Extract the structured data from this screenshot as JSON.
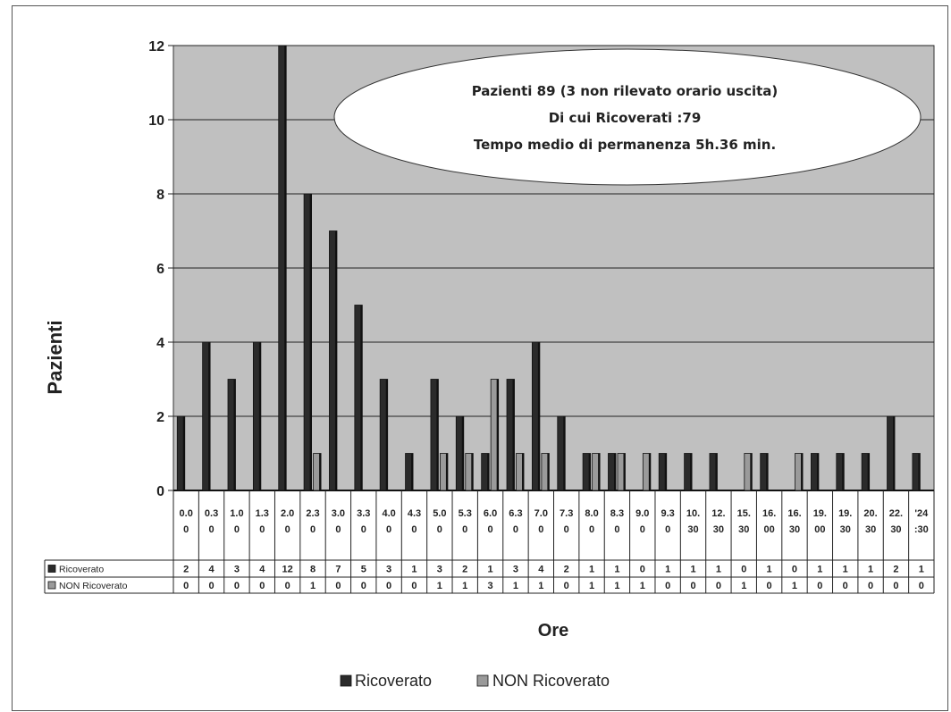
{
  "chart_data": {
    "type": "bar",
    "xlabel": "Ore",
    "ylabel": "Pazienti",
    "ylim": [
      0,
      12
    ],
    "yticks": [
      "0",
      "2",
      "4",
      "6",
      "8",
      "10",
      "12"
    ],
    "grid": true,
    "legend_position": "bottom",
    "categories": [
      [
        "0.0",
        "0"
      ],
      [
        "0.3",
        "0"
      ],
      [
        "1.0",
        "0"
      ],
      [
        "1.3",
        "0"
      ],
      [
        "2.0",
        "0"
      ],
      [
        "2.3",
        "0"
      ],
      [
        "3.0",
        "0"
      ],
      [
        "3.3",
        "0"
      ],
      [
        "4.0",
        "0"
      ],
      [
        "4.3",
        "0"
      ],
      [
        "5.0",
        "0"
      ],
      [
        "5.3",
        "0"
      ],
      [
        "6.0",
        "0"
      ],
      [
        "6.3",
        "0"
      ],
      [
        "7.0",
        "0"
      ],
      [
        "7.3",
        "0"
      ],
      [
        "8.0",
        "0"
      ],
      [
        "8.3",
        "0"
      ],
      [
        "9.0",
        "0"
      ],
      [
        "9.3",
        "0"
      ],
      [
        "10.",
        "30"
      ],
      [
        "12.",
        "30"
      ],
      [
        "15.",
        "30"
      ],
      [
        "16.",
        "00"
      ],
      [
        "16.",
        "30"
      ],
      [
        "19.",
        "00"
      ],
      [
        "19.",
        "30"
      ],
      [
        "20.",
        "30"
      ],
      [
        "22.",
        "30"
      ],
      [
        "'24",
        ":30"
      ]
    ],
    "series": [
      {
        "name": "Ricoverato",
        "color": "#2b2b2b",
        "values": [
          2,
          4,
          3,
          4,
          12,
          8,
          7,
          5,
          3,
          1,
          3,
          2,
          1,
          3,
          4,
          2,
          1,
          1,
          0,
          1,
          1,
          1,
          0,
          1,
          0,
          1,
          1,
          1,
          2,
          1
        ]
      },
      {
        "name": "NON Ricoverato",
        "color": "#9a9a9a",
        "values": [
          0,
          0,
          0,
          0,
          0,
          1,
          0,
          0,
          0,
          0,
          1,
          1,
          3,
          1,
          1,
          0,
          1,
          1,
          1,
          0,
          0,
          0,
          1,
          0,
          1,
          0,
          0,
          0,
          0,
          0
        ]
      }
    ],
    "annotation": [
      "Pazienti 89 (3 non rilevato orario uscita)",
      "Di cui Ricoverati :79",
      "Tempo medio di permanenza 5h.36 min."
    ]
  },
  "colors": {
    "plot_background": "#c0c0c0",
    "ricoverato": "#2b2b2b",
    "non_ricoverato": "#9a9a9a"
  }
}
